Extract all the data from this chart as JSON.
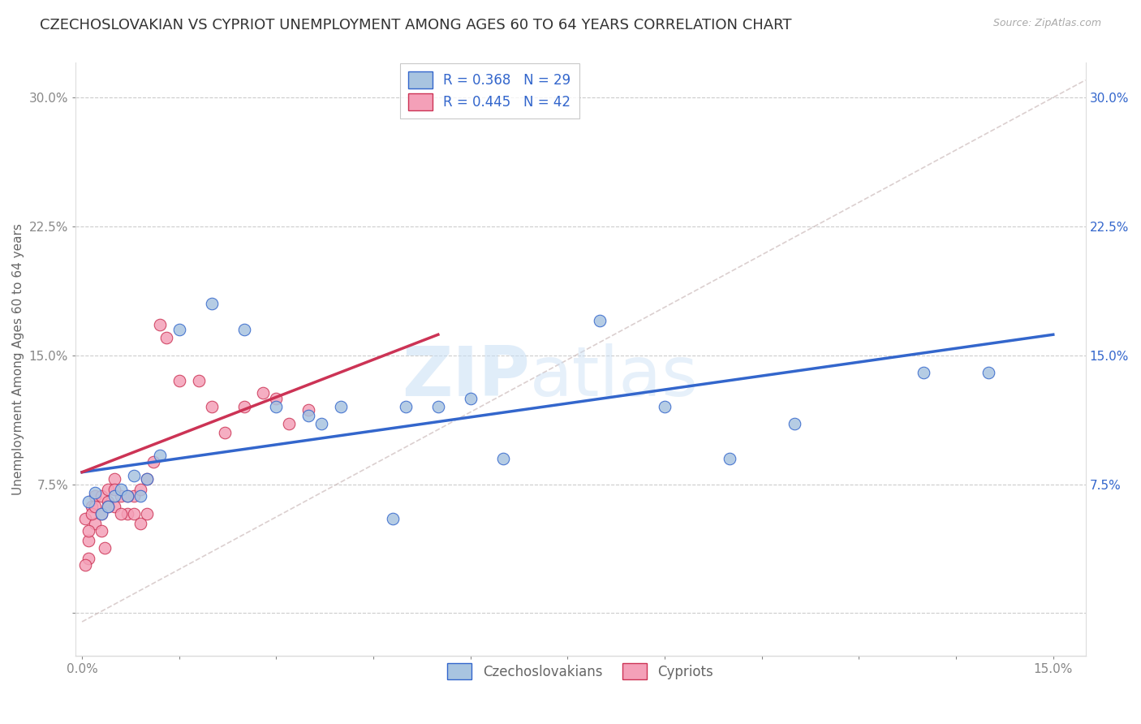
{
  "title": "CZECHOSLOVAKIAN VS CYPRIOT UNEMPLOYMENT AMONG AGES 60 TO 64 YEARS CORRELATION CHART",
  "source": "Source: ZipAtlas.com",
  "ylabel_label": "Unemployment Among Ages 60 to 64 years",
  "xlim": [
    -0.001,
    0.155
  ],
  "ylim": [
    -0.025,
    0.32
  ],
  "yticks": [
    0.0,
    0.075,
    0.15,
    0.225,
    0.3
  ],
  "ytick_labels": [
    "",
    "7.5%",
    "15.0%",
    "22.5%",
    "30.0%"
  ],
  "xticks": [
    0.0,
    0.015,
    0.03,
    0.045,
    0.06,
    0.075,
    0.09,
    0.105,
    0.12,
    0.135,
    0.15
  ],
  "xtick_labels": [
    "0.0%",
    "",
    "",
    "",
    "",
    "",
    "",
    "",
    "",
    "",
    "15.0%"
  ],
  "blue_color": "#a8c4e0",
  "pink_color": "#f4a0b8",
  "blue_line_color": "#3366cc",
  "pink_line_color": "#cc3355",
  "ref_line_color": "#ccbbbb",
  "legend_blue_label": "R = 0.368   N = 29",
  "legend_pink_label": "R = 0.445   N = 42",
  "blue_scatter_x": [
    0.001,
    0.002,
    0.003,
    0.004,
    0.005,
    0.006,
    0.007,
    0.008,
    0.009,
    0.01,
    0.012,
    0.015,
    0.02,
    0.025,
    0.03,
    0.035,
    0.04,
    0.05,
    0.055,
    0.06,
    0.065,
    0.08,
    0.09,
    0.1,
    0.11,
    0.13,
    0.14,
    0.037,
    0.048
  ],
  "blue_scatter_y": [
    0.065,
    0.07,
    0.058,
    0.062,
    0.068,
    0.072,
    0.068,
    0.08,
    0.068,
    0.078,
    0.092,
    0.165,
    0.18,
    0.165,
    0.12,
    0.115,
    0.12,
    0.12,
    0.12,
    0.125,
    0.09,
    0.17,
    0.12,
    0.09,
    0.11,
    0.14,
    0.14,
    0.11,
    0.055
  ],
  "pink_scatter_x": [
    0.0005,
    0.001,
    0.001,
    0.0015,
    0.002,
    0.002,
    0.003,
    0.003,
    0.0035,
    0.004,
    0.004,
    0.005,
    0.005,
    0.006,
    0.007,
    0.008,
    0.009,
    0.01,
    0.011,
    0.012,
    0.013,
    0.015,
    0.018,
    0.02,
    0.022,
    0.025,
    0.028,
    0.03,
    0.032,
    0.035,
    0.0005,
    0.001,
    0.0015,
    0.002,
    0.003,
    0.004,
    0.005,
    0.006,
    0.007,
    0.008,
    0.009,
    0.01
  ],
  "pink_scatter_y": [
    0.055,
    0.042,
    0.032,
    0.062,
    0.052,
    0.068,
    0.068,
    0.048,
    0.038,
    0.072,
    0.065,
    0.078,
    0.062,
    0.068,
    0.058,
    0.068,
    0.072,
    0.078,
    0.088,
    0.168,
    0.16,
    0.135,
    0.135,
    0.12,
    0.105,
    0.12,
    0.128,
    0.125,
    0.11,
    0.118,
    0.028,
    0.048,
    0.058,
    0.062,
    0.058,
    0.062,
    0.072,
    0.058,
    0.068,
    0.058,
    0.052,
    0.058
  ],
  "blue_trend_x": [
    0.0,
    0.15
  ],
  "blue_trend_y": [
    0.082,
    0.162
  ],
  "pink_trend_x": [
    0.0,
    0.055
  ],
  "pink_trend_y": [
    0.082,
    0.162
  ],
  "ref_line_x": [
    0.0,
    0.155
  ],
  "ref_line_y": [
    -0.005,
    0.31
  ],
  "watermark_zip": "ZIP",
  "watermark_atlas": "atlas",
  "background_color": "#ffffff",
  "grid_color": "#cccccc",
  "title_fontsize": 13,
  "axis_label_fontsize": 11,
  "tick_fontsize": 11,
  "legend_fontsize": 12
}
